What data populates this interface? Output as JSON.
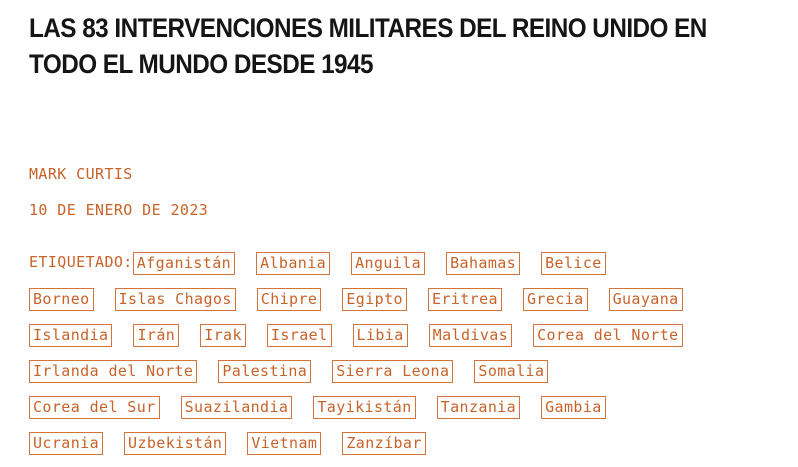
{
  "article": {
    "title": "LAS 83 INTERVENCIONES MILITARES DEL REINO UNIDO EN TODO EL MUNDO DESDE 1945",
    "author": "MARK CURTIS",
    "date": "10 DE ENERO DE 2023",
    "tags_label": "ETIQUETADO:",
    "tags": [
      "Afganistán",
      "Albania",
      "Anguila",
      "Bahamas",
      "Belice",
      "Borneo",
      "Islas Chagos",
      "Chipre",
      "Egipto",
      "Eritrea",
      "Grecia",
      "Guayana",
      "Islandia",
      "Irán",
      "Irak",
      "Israel",
      "Libia",
      "Maldivas",
      "Corea del Norte",
      "Irlanda del Norte",
      "Palestina",
      "Sierra Leona",
      "Somalia",
      "Corea del Sur",
      "Suazilandia",
      "Tayikistán",
      "Tanzania",
      "Gambia",
      "Ucrania",
      "Uzbekistán",
      "Vietnam",
      "Zanzíbar"
    ]
  },
  "colors": {
    "accent": "#c8632a",
    "title": "#151515",
    "background": "#ffffff"
  }
}
